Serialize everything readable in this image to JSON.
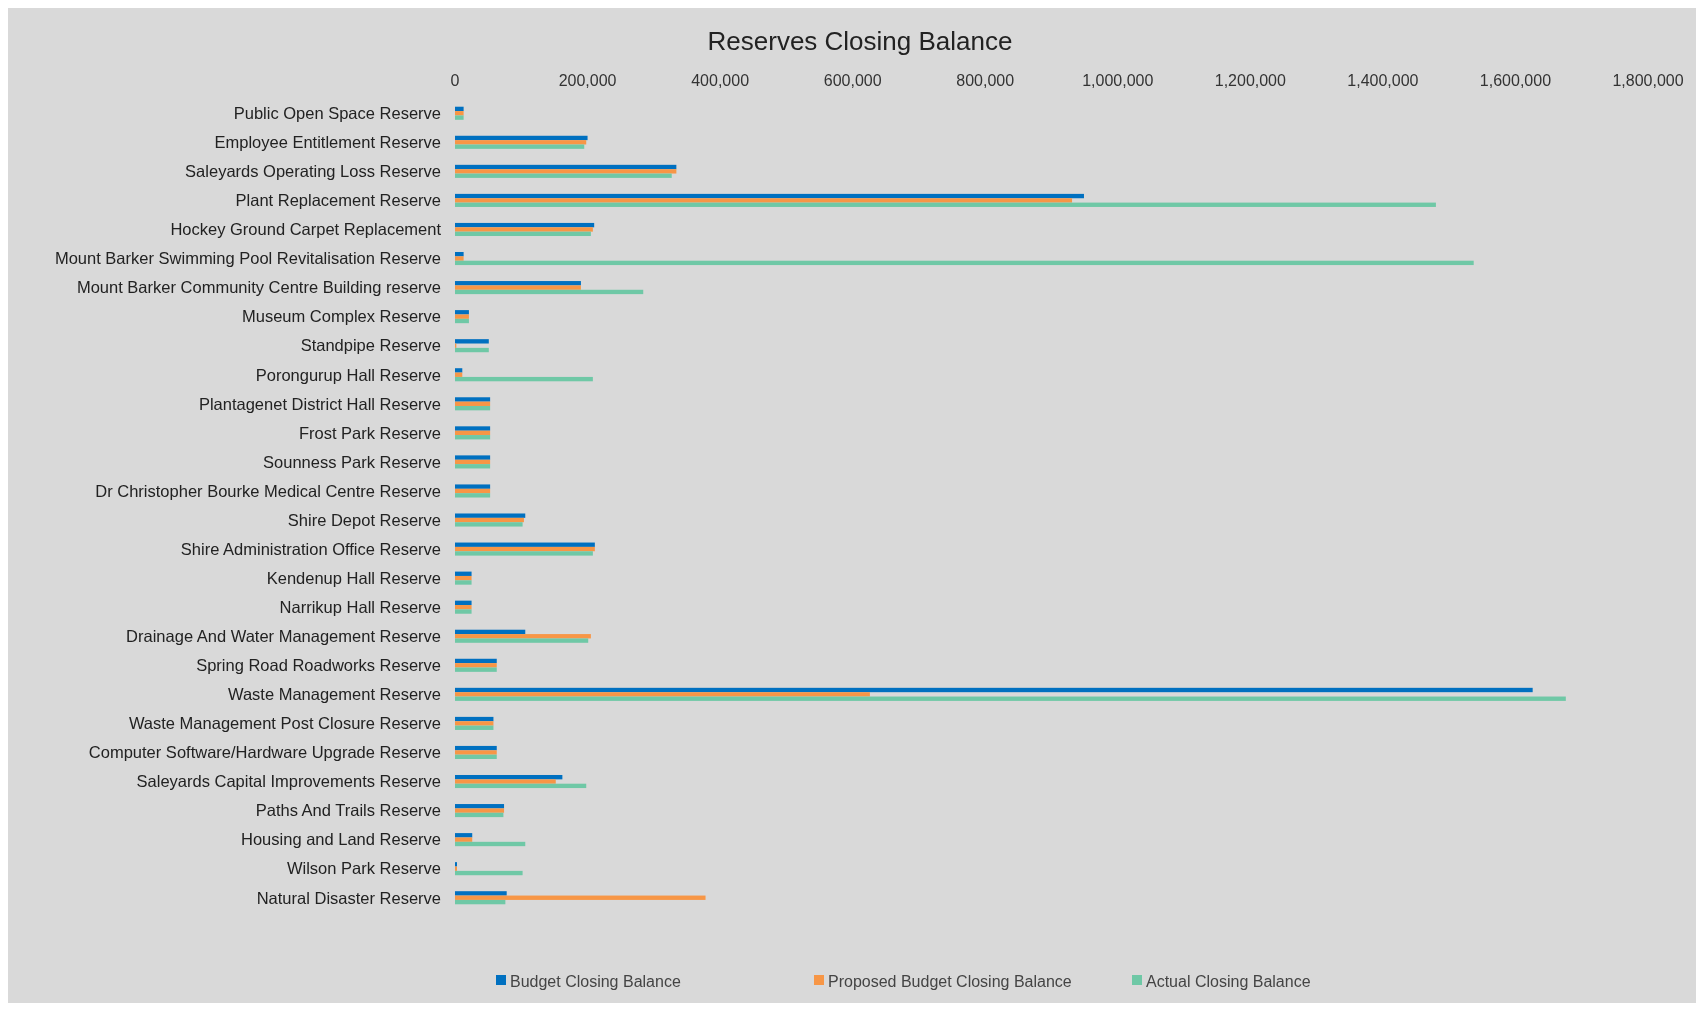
{
  "chart_data": {
    "type": "bar",
    "orientation": "horizontal",
    "title": "Reserves Closing Balance",
    "categories": [
      "Public Open Space Reserve",
      "Employee Entitlement Reserve",
      "Saleyards Operating Loss Reserve",
      "Plant Replacement Reserve",
      "Hockey Ground Carpet Replacement",
      "Mount Barker Swimming Pool Revitalisation Reserve",
      "Mount Barker Community Centre Building reserve",
      "Museum Complex Reserve",
      "Standpipe Reserve",
      "Porongurup Hall Reserve",
      "Plantagenet District Hall Reserve",
      "Frost Park Reserve",
      "Sounness Park Reserve",
      "Dr Christopher Bourke Medical Centre Reserve",
      "Shire Depot Reserve",
      "Shire Administration Office Reserve",
      "Kendenup Hall Reserve",
      "Narrikup Hall Reserve",
      "Drainage And Water Management Reserve",
      "Spring Road Roadworks Reserve",
      "Waste Management Reserve",
      "Waste Management Post Closure Reserve",
      "Computer Software/Hardware Upgrade Reserve",
      "Saleyards Capital Improvements Reserve",
      "Paths And Trails Reserve",
      "Housing and Land Reserve",
      "Wilson Park Reserve",
      "Natural Disaster Reserve"
    ],
    "series": [
      {
        "name": "Budget Closing Balance",
        "color": "#0070c0",
        "values": [
          13000,
          200000,
          334000,
          949000,
          210000,
          13000,
          190000,
          21000,
          51000,
          11000,
          53000,
          53000,
          53000,
          53000,
          106000,
          211000,
          25000,
          25000,
          106000,
          63000,
          1626000,
          58000,
          63000,
          162000,
          74000,
          26000,
          3000,
          78000
        ]
      },
      {
        "name": "Proposed Budget Closing Balance",
        "color": "#f79646",
        "values": [
          13000,
          198000,
          334000,
          931000,
          208000,
          13000,
          190000,
          21000,
          2000,
          11000,
          53000,
          53000,
          53000,
          53000,
          104000,
          211000,
          25000,
          25000,
          205000,
          63000,
          626000,
          58000,
          63000,
          152000,
          74000,
          26000,
          3000,
          378000
        ]
      },
      {
        "name": "Actual Closing Balance",
        "color": "#6fc8a6",
        "values": [
          13000,
          195000,
          327000,
          1480000,
          205000,
          1537000,
          284000,
          21000,
          51000,
          208000,
          53000,
          53000,
          53000,
          53000,
          102000,
          208000,
          25000,
          25000,
          201000,
          63000,
          1676000,
          58000,
          63000,
          198000,
          73000,
          106000,
          102000,
          76000
        ]
      }
    ],
    "xlim": [
      0,
      1800000
    ],
    "xticks": [
      {
        "value": 0,
        "label": "0"
      },
      {
        "value": 200000,
        "label": "200,000"
      },
      {
        "value": 400000,
        "label": "400,000"
      },
      {
        "value": 600000,
        "label": "600,000"
      },
      {
        "value": 800000,
        "label": "800,000"
      },
      {
        "value": 1000000,
        "label": "1,000,000"
      },
      {
        "value": 1200000,
        "label": "1,200,000"
      },
      {
        "value": 1400000,
        "label": "1,400,000"
      },
      {
        "value": 1600000,
        "label": "1,600,000"
      },
      {
        "value": 1800000,
        "label": "1,800,000"
      }
    ],
    "grid": false,
    "legend": "bottom"
  }
}
